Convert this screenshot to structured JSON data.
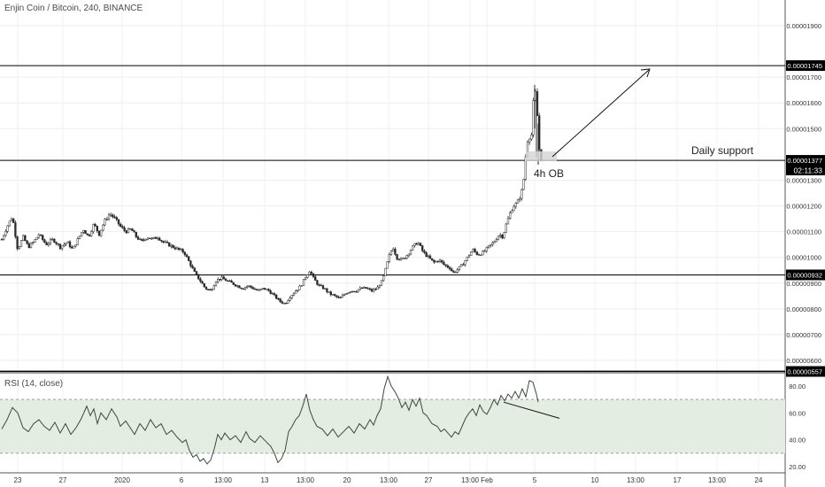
{
  "header": {
    "title": "Enjin Coin / Bitcoin, 240, BINANCE"
  },
  "rsi": {
    "label": "RSI (14, close)",
    "ticks": [
      {
        "label": "80.00",
        "value": 80
      },
      {
        "label": "60.00",
        "value": 60
      },
      {
        "label": "40.00",
        "value": 40
      },
      {
        "label": "20.00",
        "value": 20
      }
    ],
    "band_upper": 70,
    "band_lower": 30,
    "ylim": [
      17,
      88
    ]
  },
  "annotations": {
    "daily_support": "Daily support",
    "ob": "4h OB",
    "time_label": "02:11:33"
  },
  "colors": {
    "candle": "#2a2a2a",
    "level_line": "#000000",
    "rsi_line": "#3a4a3a",
    "rsi_fill": "#e4ede1",
    "band_dash": "#9aa0a0",
    "label_box": "#000000",
    "label_text": "#ffffff"
  },
  "chart_data": {
    "type": "candlestick",
    "ylim": [
      5.3e-07,
      2e-05
    ],
    "ylabel": "",
    "price_ticks": [
      {
        "label": "0.00001900",
        "value": 1.9e-05
      },
      {
        "label": "0.00001700",
        "value": 1.7e-05
      },
      {
        "label": "0.00001600",
        "value": 1.6e-05
      },
      {
        "label": "0.00001500",
        "value": 1.5e-05
      },
      {
        "label": "0.00001300",
        "value": 1.3e-05
      },
      {
        "label": "0.00001200",
        "value": 1.2e-05
      },
      {
        "label": "0.00001100",
        "value": 1.1e-05
      },
      {
        "label": "0.00001000",
        "value": 1e-05
      },
      {
        "label": "0.00000900",
        "value": 9e-06
      },
      {
        "label": "0.00000800",
        "value": 8e-06
      },
      {
        "label": "0.00000700",
        "value": 7e-06
      },
      {
        "label": "0.00000600",
        "value": 6e-06
      }
    ],
    "horizontal_levels": [
      {
        "label": "0.00001745",
        "value": 1.745e-05
      },
      {
        "label": "0.00001377",
        "value": 1.377e-05
      },
      {
        "label": "0.00000932",
        "value": 9.32e-06
      },
      {
        "label": "0.00000557",
        "value": 5.57e-06
      }
    ],
    "x_ticks": [
      "23",
      "27",
      "2020",
      "6",
      "13:00",
      "13",
      "13:00",
      "20",
      "13:00",
      "27",
      "13:00",
      "Feb",
      "5",
      "10",
      "13:00",
      "17",
      "13:00",
      "24"
    ],
    "price_path": [
      [
        0,
        1.07e-05
      ],
      [
        6,
        1.12e-05
      ],
      [
        12,
        1.16e-05
      ],
      [
        18,
        1.03e-05
      ],
      [
        24,
        1.08e-05
      ],
      [
        30,
        1.04e-05
      ],
      [
        36,
        1.06e-05
      ],
      [
        42,
        1.09e-05
      ],
      [
        50,
        1.05e-05
      ],
      [
        58,
        1.07e-05
      ],
      [
        66,
        1.04e-05
      ],
      [
        74,
        1.06e-05
      ],
      [
        80,
        1.03e-05
      ],
      [
        86,
        1.07e-05
      ],
      [
        92,
        1.11e-05
      ],
      [
        98,
        1.08e-05
      ],
      [
        104,
        1.13e-05
      ],
      [
        110,
        1.09e-05
      ],
      [
        116,
        1.14e-05
      ],
      [
        122,
        1.17e-05
      ],
      [
        128,
        1.15e-05
      ],
      [
        134,
        1.12e-05
      ],
      [
        140,
        1.1e-05
      ],
      [
        146,
        1.11e-05
      ],
      [
        152,
        1.08e-05
      ],
      [
        158,
        1.06e-05
      ],
      [
        164,
        1.08e-05
      ],
      [
        170,
        1.07e-05
      ],
      [
        176,
        1.08e-05
      ],
      [
        182,
        1.06e-05
      ],
      [
        188,
        1.05e-05
      ],
      [
        194,
        1.04e-05
      ],
      [
        200,
        1.03e-05
      ],
      [
        206,
        1.02e-05
      ],
      [
        212,
        9.8e-06
      ],
      [
        218,
        9.4e-06
      ],
      [
        224,
        9.1e-06
      ],
      [
        230,
        8.8e-06
      ],
      [
        236,
        8.7e-06
      ],
      [
        242,
        9.1e-06
      ],
      [
        248,
        9.2e-06
      ],
      [
        254,
        9.1e-06
      ],
      [
        260,
        9e-06
      ],
      [
        266,
        8.9e-06
      ],
      [
        272,
        8.8e-06
      ],
      [
        278,
        8.9e-06
      ],
      [
        284,
        8.8e-06
      ],
      [
        290,
        8.7e-06
      ],
      [
        296,
        8.8e-06
      ],
      [
        302,
        8.7e-06
      ],
      [
        308,
        8.5e-06
      ],
      [
        314,
        8.3e-06
      ],
      [
        320,
        8.2e-06
      ],
      [
        326,
        8.5e-06
      ],
      [
        332,
        8.7e-06
      ],
      [
        338,
        8.9e-06
      ],
      [
        344,
        9.3e-06
      ],
      [
        348,
        9.5e-06
      ],
      [
        352,
        9.2e-06
      ],
      [
        358,
        8.9e-06
      ],
      [
        364,
        8.8e-06
      ],
      [
        370,
        8.6e-06
      ],
      [
        376,
        8.5e-06
      ],
      [
        382,
        8.4e-06
      ],
      [
        388,
        8.6e-06
      ],
      [
        394,
        8.7e-06
      ],
      [
        400,
        8.7e-06
      ],
      [
        406,
        8.8e-06
      ],
      [
        412,
        8.8e-06
      ],
      [
        418,
        8.7e-06
      ],
      [
        424,
        8.8e-06
      ],
      [
        430,
        9.1e-06
      ],
      [
        434,
        9.6e-06
      ],
      [
        438,
        1.01e-05
      ],
      [
        442,
        1.04e-05
      ],
      [
        446,
        1e-05
      ],
      [
        452,
        9.9e-06
      ],
      [
        458,
        1.01e-05
      ],
      [
        464,
        1.04e-05
      ],
      [
        470,
        1.06e-05
      ],
      [
        476,
        1.02e-05
      ],
      [
        482,
        1e-05
      ],
      [
        488,
        9.8e-06
      ],
      [
        494,
        9.9e-06
      ],
      [
        500,
        9.7e-06
      ],
      [
        506,
        9.6e-06
      ],
      [
        510,
        9.4e-06
      ],
      [
        514,
        9.5e-06
      ],
      [
        520,
        9.7e-06
      ],
      [
        526,
        1e-05
      ],
      [
        532,
        1.03e-05
      ],
      [
        538,
        1.01e-05
      ],
      [
        544,
        1.02e-05
      ],
      [
        550,
        1.04e-05
      ],
      [
        556,
        1.06e-05
      ],
      [
        562,
        1.09e-05
      ],
      [
        566,
        1.08e-05
      ],
      [
        570,
        1.13e-05
      ],
      [
        574,
        1.17e-05
      ],
      [
        578,
        1.2e-05
      ],
      [
        582,
        1.21e-05
      ],
      [
        586,
        1.24e-05
      ],
      [
        589,
        1.28e-05
      ],
      [
        592,
        1.4e-05
      ],
      [
        595,
        1.48e-05
      ],
      [
        598,
        1.45e-05
      ],
      [
        600,
        1.58e-05
      ],
      [
        602,
        1.65e-05
      ],
      [
        604,
        1.62e-05
      ],
      [
        606,
        1.48e-05
      ],
      [
        608,
        1.38e-05
      ],
      [
        610,
        1.39e-05
      ]
    ],
    "rsi_path": [
      [
        0,
        48
      ],
      [
        6,
        55
      ],
      [
        12,
        64
      ],
      [
        18,
        60
      ],
      [
        24,
        49
      ],
      [
        30,
        46
      ],
      [
        36,
        52
      ],
      [
        42,
        55
      ],
      [
        48,
        50
      ],
      [
        54,
        47
      ],
      [
        60,
        53
      ],
      [
        66,
        45
      ],
      [
        72,
        52
      ],
      [
        78,
        44
      ],
      [
        84,
        49
      ],
      [
        90,
        56
      ],
      [
        96,
        65
      ],
      [
        100,
        58
      ],
      [
        104,
        63
      ],
      [
        108,
        52
      ],
      [
        112,
        60
      ],
      [
        118,
        55
      ],
      [
        124,
        63
      ],
      [
        130,
        57
      ],
      [
        134,
        50
      ],
      [
        140,
        54
      ],
      [
        146,
        48
      ],
      [
        150,
        44
      ],
      [
        156,
        52
      ],
      [
        162,
        47
      ],
      [
        168,
        55
      ],
      [
        174,
        49
      ],
      [
        180,
        52
      ],
      [
        186,
        44
      ],
      [
        192,
        47
      ],
      [
        198,
        42
      ],
      [
        204,
        38
      ],
      [
        208,
        40
      ],
      [
        212,
        32
      ],
      [
        216,
        27
      ],
      [
        220,
        29
      ],
      [
        224,
        24
      ],
      [
        228,
        26
      ],
      [
        232,
        22
      ],
      [
        236,
        25
      ],
      [
        240,
        33
      ],
      [
        244,
        44
      ],
      [
        248,
        40
      ],
      [
        252,
        45
      ],
      [
        258,
        40
      ],
      [
        264,
        43
      ],
      [
        270,
        38
      ],
      [
        276,
        46
      ],
      [
        280,
        41
      ],
      [
        286,
        38
      ],
      [
        292,
        43
      ],
      [
        298,
        39
      ],
      [
        304,
        35
      ],
      [
        308,
        30
      ],
      [
        312,
        23
      ],
      [
        316,
        26
      ],
      [
        320,
        32
      ],
      [
        324,
        46
      ],
      [
        328,
        50
      ],
      [
        332,
        55
      ],
      [
        336,
        58
      ],
      [
        340,
        65
      ],
      [
        344,
        74
      ],
      [
        348,
        62
      ],
      [
        352,
        55
      ],
      [
        356,
        50
      ],
      [
        362,
        48
      ],
      [
        368,
        43
      ],
      [
        374,
        48
      ],
      [
        380,
        42
      ],
      [
        386,
        46
      ],
      [
        392,
        50
      ],
      [
        398,
        45
      ],
      [
        404,
        52
      ],
      [
        410,
        48
      ],
      [
        416,
        55
      ],
      [
        420,
        51
      ],
      [
        424,
        58
      ],
      [
        428,
        63
      ],
      [
        432,
        78
      ],
      [
        436,
        87
      ],
      [
        440,
        80
      ],
      [
        444,
        76
      ],
      [
        448,
        71
      ],
      [
        452,
        64
      ],
      [
        456,
        68
      ],
      [
        460,
        62
      ],
      [
        464,
        70
      ],
      [
        468,
        65
      ],
      [
        472,
        71
      ],
      [
        476,
        60
      ],
      [
        480,
        58
      ],
      [
        486,
        52
      ],
      [
        492,
        50
      ],
      [
        496,
        46
      ],
      [
        500,
        48
      ],
      [
        504,
        45
      ],
      [
        508,
        42
      ],
      [
        512,
        46
      ],
      [
        516,
        44
      ],
      [
        520,
        50
      ],
      [
        524,
        56
      ],
      [
        528,
        60
      ],
      [
        532,
        63
      ],
      [
        536,
        58
      ],
      [
        540,
        66
      ],
      [
        544,
        61
      ],
      [
        548,
        59
      ],
      [
        552,
        64
      ],
      [
        556,
        70
      ],
      [
        560,
        66
      ],
      [
        564,
        73
      ],
      [
        568,
        69
      ],
      [
        572,
        74
      ],
      [
        576,
        71
      ],
      [
        580,
        76
      ],
      [
        584,
        71
      ],
      [
        588,
        78
      ],
      [
        592,
        72
      ],
      [
        596,
        84
      ],
      [
        600,
        83
      ],
      [
        604,
        74
      ],
      [
        606,
        68
      ]
    ],
    "rsi_trendline": [
      [
        569,
        68
      ],
      [
        632,
        56
      ]
    ]
  }
}
